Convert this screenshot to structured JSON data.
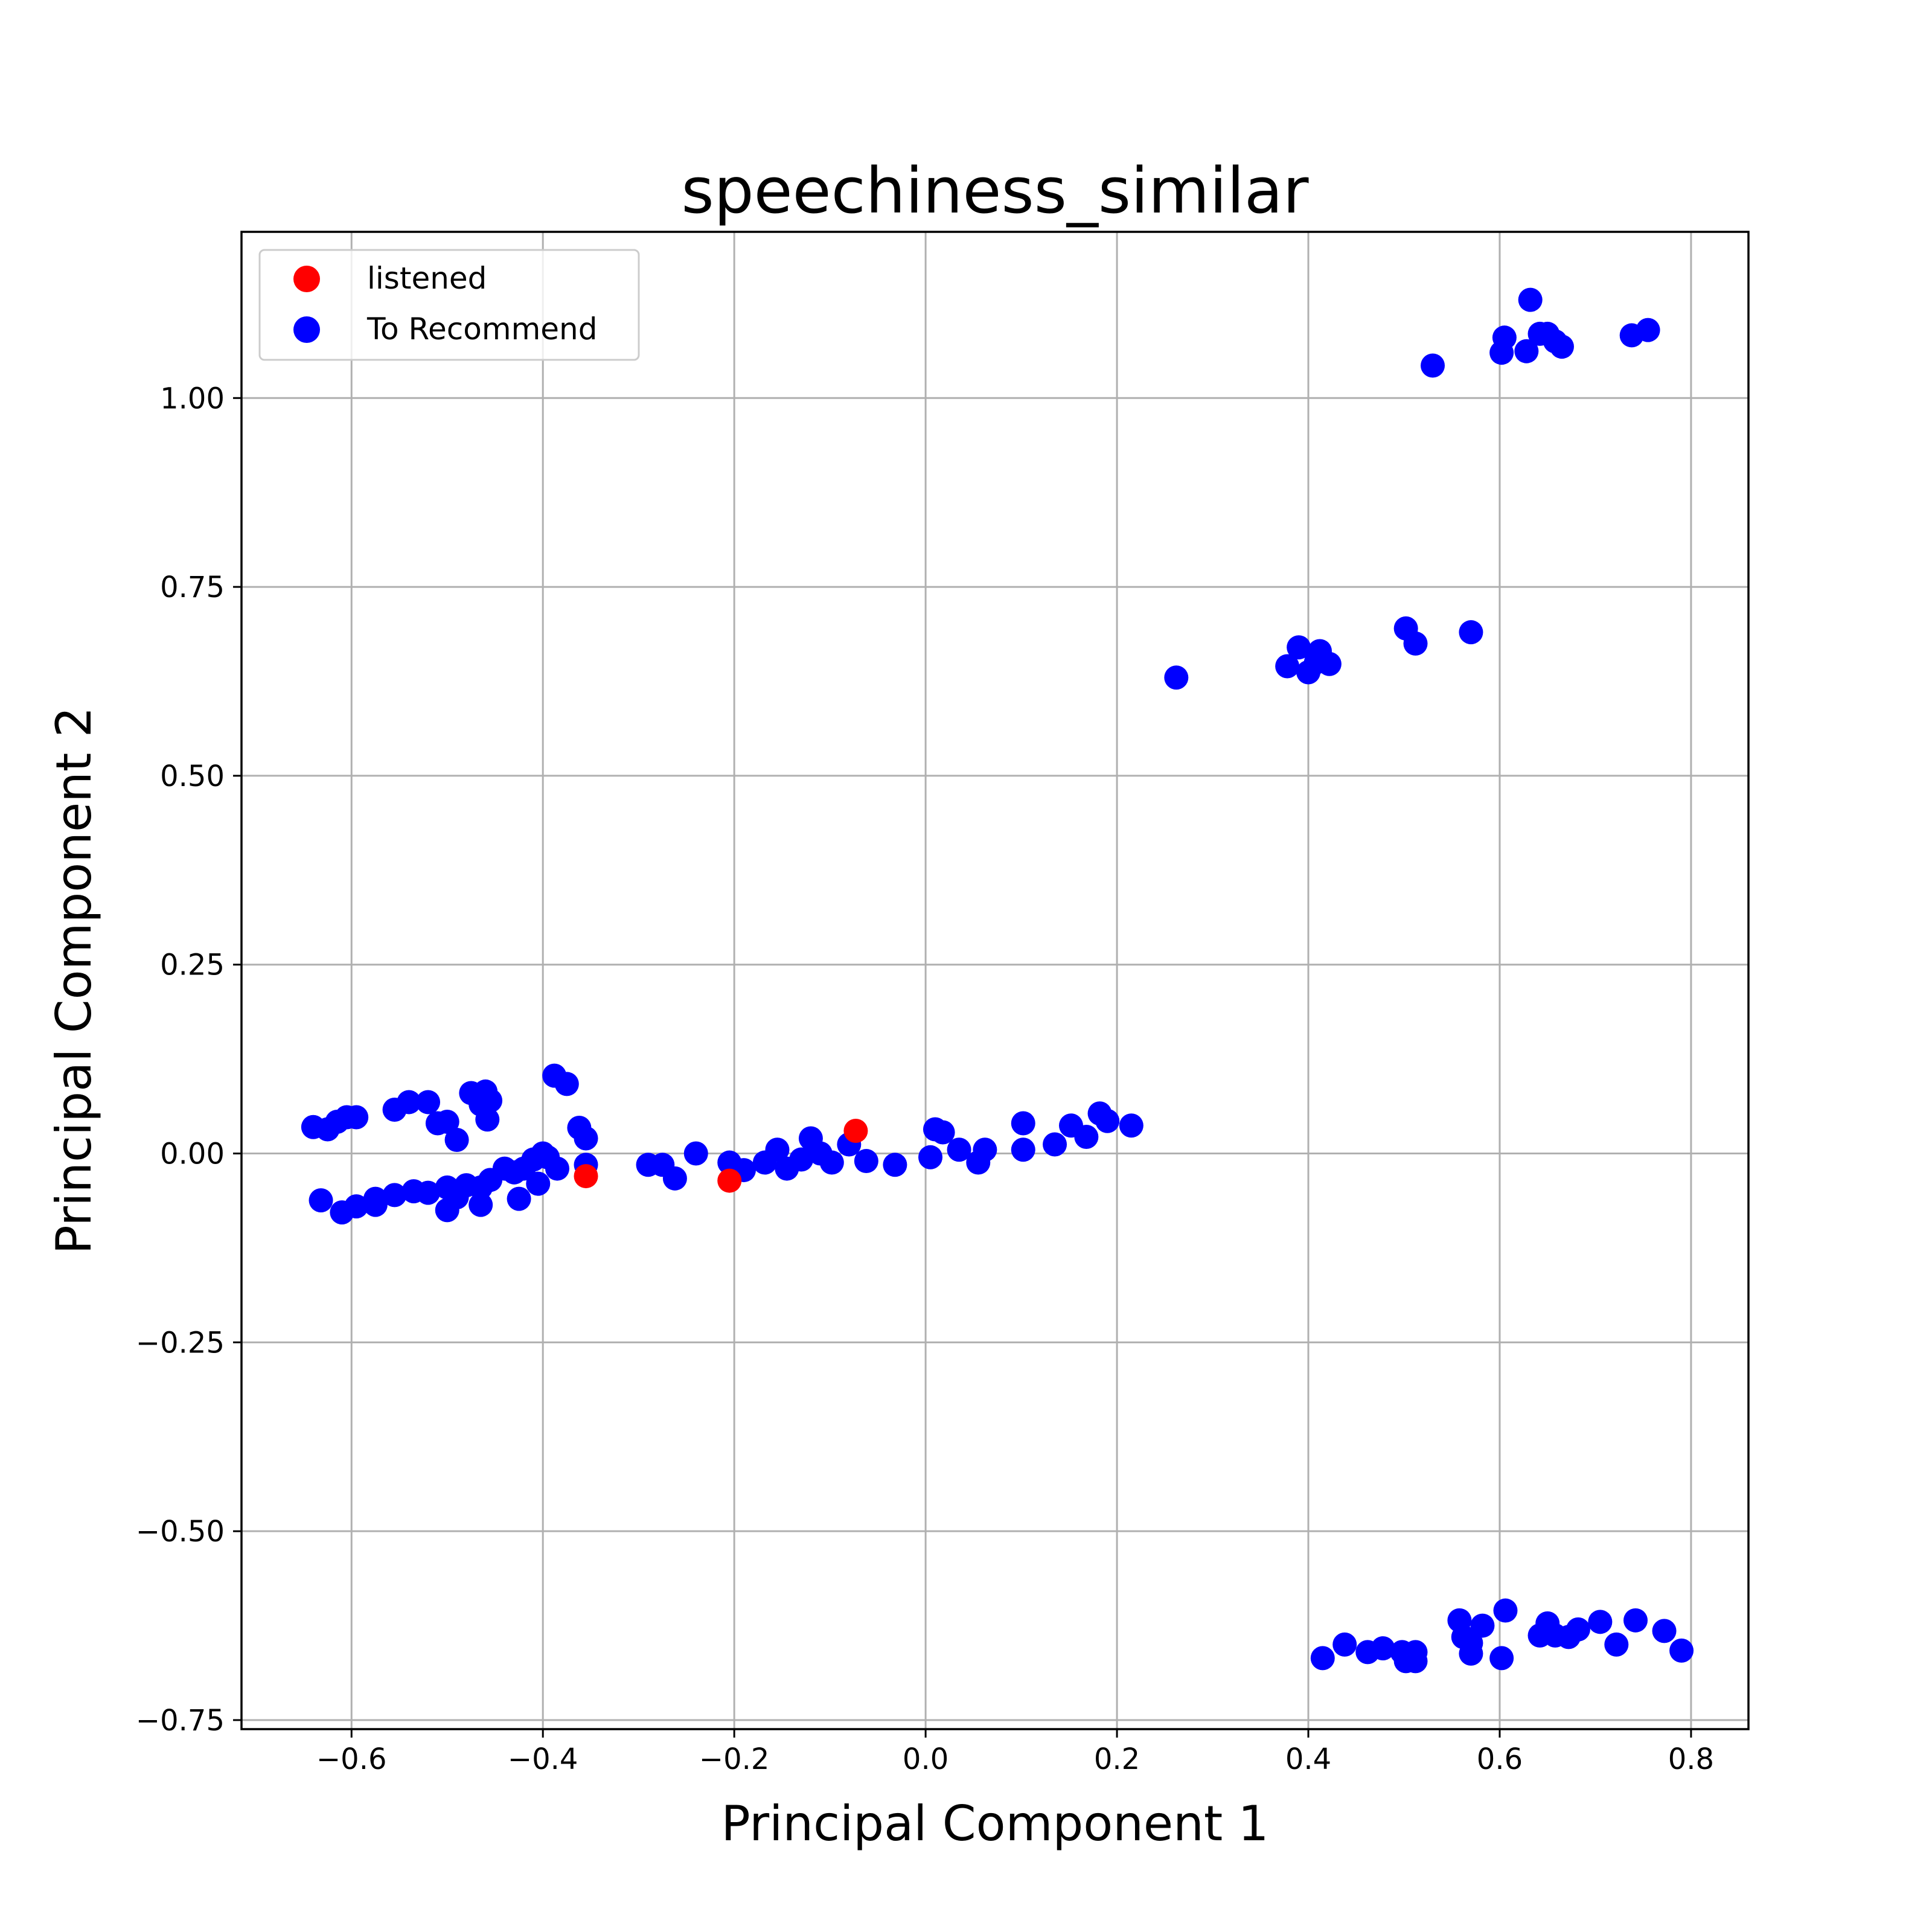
{
  "chart_data": {
    "type": "scatter",
    "title": "speechiness_similar",
    "xlabel": "Principal Component 1",
    "ylabel": "Principal Component 2",
    "xlim": [
      -0.715,
      0.86
    ],
    "ylim": [
      -0.762,
      1.22
    ],
    "xticks": [
      -0.6,
      -0.4,
      -0.2,
      0.0,
      0.2,
      0.4,
      0.6,
      0.8
    ],
    "xtick_labels": [
      "−0.6",
      "−0.4",
      "−0.2",
      "0.0",
      "0.2",
      "0.4",
      "0.6",
      "0.8"
    ],
    "yticks": [
      -0.75,
      -0.5,
      -0.25,
      0.0,
      0.25,
      0.5,
      0.75,
      1.0
    ],
    "ytick_labels": [
      "−0.75",
      "−0.50",
      "−0.25",
      "0.00",
      "0.25",
      "0.50",
      "0.75",
      "1.00"
    ],
    "grid": true,
    "legend_position": "upper-left",
    "series": [
      {
        "name": "listened",
        "color": "#ff0000",
        "points": [
          [
            -0.355,
            -0.03
          ],
          [
            -0.205,
            -0.036
          ],
          [
            -0.073,
            0.03
          ]
        ]
      },
      {
        "name": "To Recommend",
        "color": "#0000ff",
        "points": [
          [
            -0.64,
            0.035
          ],
          [
            -0.625,
            0.032
          ],
          [
            -0.615,
            0.042
          ],
          [
            -0.605,
            0.048
          ],
          [
            -0.595,
            0.048
          ],
          [
            -0.555,
            0.058
          ],
          [
            -0.54,
            0.068
          ],
          [
            -0.52,
            0.068
          ],
          [
            -0.51,
            0.04
          ],
          [
            -0.5,
            0.042
          ],
          [
            -0.49,
            0.018
          ],
          [
            -0.475,
            0.08
          ],
          [
            -0.46,
            0.082
          ],
          [
            -0.455,
            0.07
          ],
          [
            -0.458,
            0.045
          ],
          [
            -0.465,
            0.065
          ],
          [
            -0.388,
            0.103
          ],
          [
            -0.375,
            0.092
          ],
          [
            -0.362,
            0.034
          ],
          [
            -0.355,
            0.02
          ],
          [
            -0.355,
            -0.015
          ],
          [
            -0.385,
            -0.02
          ],
          [
            -0.395,
            -0.005
          ],
          [
            -0.4,
            0.0
          ],
          [
            -0.41,
            -0.008
          ],
          [
            -0.405,
            -0.04
          ],
          [
            -0.42,
            -0.02
          ],
          [
            -0.425,
            -0.06
          ],
          [
            -0.43,
            -0.025
          ],
          [
            -0.44,
            -0.02
          ],
          [
            -0.455,
            -0.035
          ],
          [
            -0.465,
            -0.045
          ],
          [
            -0.465,
            -0.068
          ],
          [
            -0.48,
            -0.042
          ],
          [
            -0.49,
            -0.058
          ],
          [
            -0.5,
            -0.045
          ],
          [
            -0.5,
            -0.075
          ],
          [
            -0.52,
            -0.052
          ],
          [
            -0.535,
            -0.05
          ],
          [
            -0.555,
            -0.055
          ],
          [
            -0.575,
            -0.06
          ],
          [
            -0.575,
            -0.068
          ],
          [
            -0.595,
            -0.07
          ],
          [
            -0.61,
            -0.078
          ],
          [
            -0.632,
            -0.062
          ],
          [
            -0.29,
            -0.015
          ],
          [
            -0.275,
            -0.015
          ],
          [
            -0.262,
            -0.033
          ],
          [
            -0.24,
            0.0
          ],
          [
            -0.205,
            -0.012
          ],
          [
            -0.19,
            -0.022
          ],
          [
            -0.168,
            -0.012
          ],
          [
            -0.155,
            0.005
          ],
          [
            -0.145,
            -0.02
          ],
          [
            -0.13,
            -0.008
          ],
          [
            -0.12,
            0.02
          ],
          [
            -0.11,
            0.0
          ],
          [
            -0.098,
            -0.012
          ],
          [
            -0.08,
            0.012
          ],
          [
            -0.062,
            -0.01
          ],
          [
            -0.032,
            -0.015
          ],
          [
            0.005,
            -0.005
          ],
          [
            0.01,
            0.032
          ],
          [
            0.018,
            0.028
          ],
          [
            0.035,
            0.005
          ],
          [
            0.055,
            -0.012
          ],
          [
            0.062,
            0.005
          ],
          [
            0.102,
            0.04
          ],
          [
            0.102,
            0.005
          ],
          [
            0.135,
            0.012
          ],
          [
            0.152,
            0.037
          ],
          [
            0.168,
            0.022
          ],
          [
            0.182,
            0.053
          ],
          [
            0.19,
            0.043
          ],
          [
            0.215,
            0.037
          ],
          [
            0.262,
            0.63
          ],
          [
            0.378,
            0.645
          ],
          [
            0.39,
            0.67
          ],
          [
            0.4,
            0.637
          ],
          [
            0.408,
            0.65
          ],
          [
            0.412,
            0.665
          ],
          [
            0.422,
            0.648
          ],
          [
            0.502,
            0.695
          ],
          [
            0.512,
            0.675
          ],
          [
            0.57,
            0.69
          ],
          [
            0.53,
            1.043
          ],
          [
            0.602,
            1.06
          ],
          [
            0.605,
            1.08
          ],
          [
            0.628,
            1.062
          ],
          [
            0.632,
            1.13
          ],
          [
            0.642,
            1.085
          ],
          [
            0.65,
            1.085
          ],
          [
            0.658,
            1.075
          ],
          [
            0.665,
            1.068
          ],
          [
            0.738,
            1.083
          ],
          [
            0.755,
            1.09
          ],
          [
            0.415,
            -0.668
          ],
          [
            0.438,
            -0.65
          ],
          [
            0.462,
            -0.66
          ],
          [
            0.478,
            -0.655
          ],
          [
            0.498,
            -0.66
          ],
          [
            0.502,
            -0.672
          ],
          [
            0.512,
            -0.672
          ],
          [
            0.512,
            -0.66
          ],
          [
            0.558,
            -0.618
          ],
          [
            0.562,
            -0.64
          ],
          [
            0.57,
            -0.648
          ],
          [
            0.57,
            -0.662
          ],
          [
            0.582,
            -0.625
          ],
          [
            0.602,
            -0.668
          ],
          [
            0.606,
            -0.605
          ],
          [
            0.642,
            -0.638
          ],
          [
            0.65,
            -0.622
          ],
          [
            0.658,
            -0.638
          ],
          [
            0.672,
            -0.64
          ],
          [
            0.682,
            -0.63
          ],
          [
            0.705,
            -0.62
          ],
          [
            0.722,
            -0.65
          ],
          [
            0.742,
            -0.618
          ],
          [
            0.772,
            -0.632
          ],
          [
            0.79,
            -0.658
          ]
        ]
      }
    ]
  }
}
